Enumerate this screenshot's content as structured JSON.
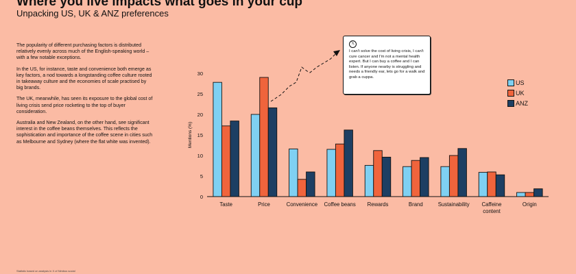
{
  "header": {
    "title": "Where you live impacts what goes in your cup",
    "subtitle": "Unpacking US, UK & ANZ preferences"
  },
  "body": {
    "paragraphs": [
      "The popularity of different purchasing factors is distributed relatively evenly across much of the English-speaking world – with a few notable exceptions.",
      "In the US, for instance, taste and convenience both emerge as key factors, a nod towards a longstanding coffee culture rooted in takeaway culture and the economies of scale practised by big brands.",
      "The UK, meanwhile, has seen its exposure to the global cost of living crisis send price rocketing to the top of buyer consideration.",
      "Australia and New Zealand, on the other hand, see significant interest in the coffee beans themselves. This reflects the sophistication and importance of the coffee scene in cities such as Melbourne and Sydney (where the flat white was invented)."
    ]
  },
  "footnote": "Statistic based on analysis in X of Nimbus social",
  "callout": {
    "icon": "x-logo-icon",
    "icon_glyph": "𝕏",
    "text": "I can't solve the cost of living crisis, I can't cure cancer and I'm not a mental health expert. But I can buy a coffee and I can listen. If anyone nearby is struggling and needs a friendly ear, lets go for a walk and grab a cuppa."
  },
  "chart_data": {
    "type": "bar",
    "title": "",
    "xlabel": "",
    "ylabel": "Mentions (%)",
    "ylim": [
      0,
      30
    ],
    "yticks": [
      0,
      5,
      10,
      15,
      20,
      25,
      30
    ],
    "grid": false,
    "legend_position": "right",
    "categories": [
      "Taste",
      "Price",
      "Convenience",
      "Coffee beans",
      "Rewards",
      "Brand",
      "Sustainability",
      "Caffeine content",
      "Origin"
    ],
    "category_lines": [
      [
        "Taste"
      ],
      [
        "Price"
      ],
      [
        "Convenience"
      ],
      [
        "Coffee beans"
      ],
      [
        "Rewards"
      ],
      [
        "Brand"
      ],
      [
        "Sustainability"
      ],
      [
        "Caffeine",
        "content"
      ],
      [
        "Origin"
      ]
    ],
    "series": [
      {
        "name": "US",
        "color": "#7fd0f2",
        "values": [
          27.8,
          20.0,
          11.6,
          11.5,
          7.6,
          7.3,
          7.3,
          5.9,
          1.0
        ]
      },
      {
        "name": "UK",
        "color": "#f0643c",
        "values": [
          17.2,
          29.0,
          4.2,
          12.8,
          11.2,
          8.8,
          10.0,
          6.0,
          1.0
        ]
      },
      {
        "name": "ANZ",
        "color": "#1d3f63",
        "values": [
          18.4,
          21.6,
          6.0,
          16.2,
          9.6,
          9.5,
          11.7,
          5.3,
          1.9
        ]
      }
    ]
  }
}
